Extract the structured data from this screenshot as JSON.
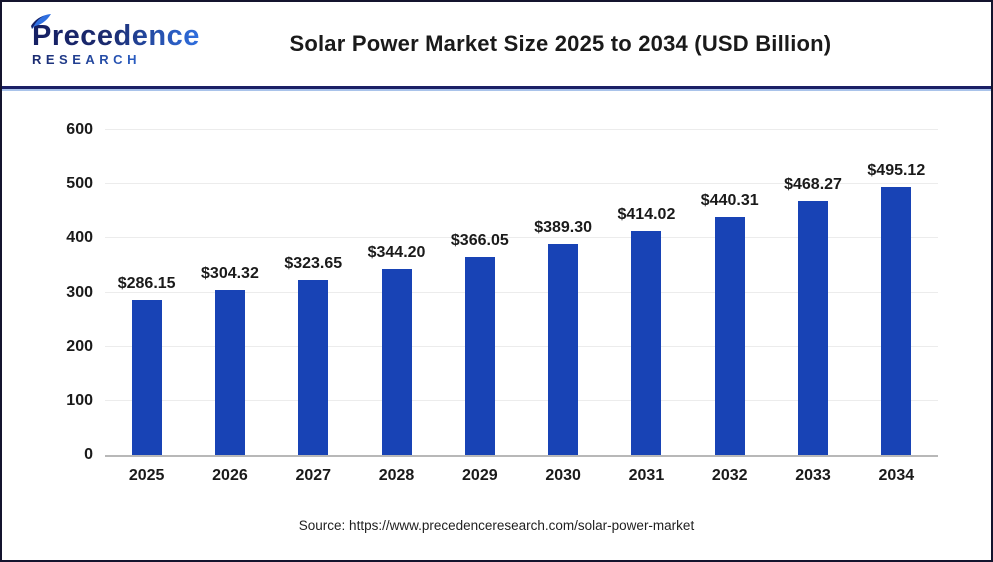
{
  "header": {
    "logo_line1": "Precedence",
    "logo_line2": "RESEARCH",
    "title": "Solar Power Market Size 2025 to 2034 (USD Billion)"
  },
  "footer": {
    "source": "Source: https://www.precedenceresearch.com/solar-power-market"
  },
  "colors": {
    "bar": "#1843b5",
    "logo_navy": "#1b2a6e",
    "logo_blue": "#2e5fd0",
    "divider_navy": "#1b2066",
    "divider_light_blue": "#a9c3ea",
    "gridline": "#ececec",
    "baseline": "#b8b8b8"
  },
  "chart_data": {
    "type": "bar",
    "title": "Solar Power Market Size 2025 to 2034 (USD Billion)",
    "categories": [
      "2025",
      "2026",
      "2027",
      "2028",
      "2029",
      "2030",
      "2031",
      "2032",
      "2033",
      "2034"
    ],
    "values": [
      286.15,
      304.32,
      323.65,
      344.2,
      366.05,
      389.3,
      414.02,
      440.31,
      468.27,
      495.12
    ],
    "bar_labels": [
      "$286.15",
      "$304.32",
      "$323.65",
      "$344.20",
      "$366.05",
      "$389.30",
      "$414.02",
      "$440.31",
      "$468.27",
      "$495.12"
    ],
    "xlabel": "",
    "ylabel": "",
    "ylim": [
      0,
      600
    ],
    "yticks": [
      0,
      100,
      200,
      300,
      400,
      500,
      600
    ],
    "grid": true,
    "legend": false,
    "bar_color": "#1843b5"
  }
}
